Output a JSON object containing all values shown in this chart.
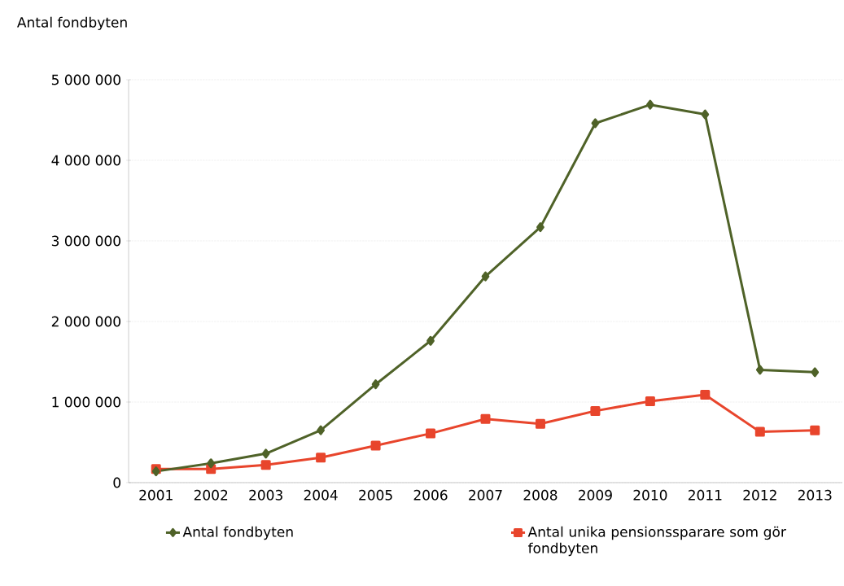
{
  "chart_data": {
    "type": "line",
    "ylabel": "Antal fondbyten",
    "categories": [
      "2001",
      "2002",
      "2003",
      "2004",
      "2005",
      "2006",
      "2007",
      "2008",
      "2009",
      "2010",
      "2011",
      "2012",
      "2013"
    ],
    "series": [
      {
        "name": "Antal fondbyten",
        "color": "#4f6228",
        "marker": "diamond",
        "values": [
          140000,
          240000,
          360000,
          650000,
          1220000,
          1760000,
          2560000,
          3170000,
          4460000,
          4690000,
          4570000,
          1400000,
          1370000
        ]
      },
      {
        "name": "Antal unika pensionssparare som gör fondbyten",
        "color": "#e8452c",
        "marker": "square",
        "values": [
          170000,
          170000,
          220000,
          310000,
          460000,
          610000,
          790000,
          730000,
          890000,
          1010000,
          1090000,
          630000,
          650000
        ]
      }
    ],
    "ylim": [
      0,
      5000000
    ],
    "yticks": [
      {
        "value": 0,
        "label": "0"
      },
      {
        "value": 1000000,
        "label": "1 000 000"
      },
      {
        "value": 2000000,
        "label": "2 000 000"
      },
      {
        "value": 3000000,
        "label": "3 000 000"
      },
      {
        "value": 4000000,
        "label": "4 000 000"
      },
      {
        "value": 5000000,
        "label": "5 000 000"
      }
    ],
    "grid": "y",
    "legend": "bottom"
  }
}
